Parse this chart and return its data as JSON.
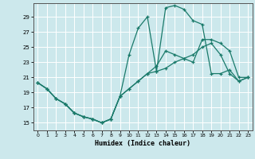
{
  "xlabel": "Humidex (Indice chaleur)",
  "xlim": [
    -0.5,
    23.5
  ],
  "ylim": [
    14.0,
    30.8
  ],
  "yticks": [
    15,
    17,
    19,
    21,
    23,
    25,
    27,
    29
  ],
  "xticks": [
    0,
    1,
    2,
    3,
    4,
    5,
    6,
    7,
    8,
    9,
    10,
    11,
    12,
    13,
    14,
    15,
    16,
    17,
    18,
    19,
    20,
    21,
    22,
    23
  ],
  "bg_color": "#cce8ec",
  "grid_color": "#ffffff",
  "line_color": "#1a7a6a",
  "line1_x": [
    0,
    1,
    2,
    3,
    4,
    5,
    6,
    7,
    8,
    9,
    10,
    11,
    12,
    13,
    14,
    15,
    16,
    17,
    18,
    19,
    20,
    21,
    22,
    23
  ],
  "line1_y": [
    20.3,
    19.5,
    18.2,
    17.5,
    16.3,
    15.8,
    15.5,
    15.0,
    15.5,
    18.5,
    19.5,
    20.5,
    21.5,
    21.8,
    22.2,
    23.0,
    23.5,
    24.0,
    25.0,
    25.5,
    24.0,
    21.5,
    20.5,
    21.0
  ],
  "line2_x": [
    0,
    1,
    2,
    3,
    4,
    5,
    6,
    7,
    8,
    9,
    10,
    11,
    12,
    13,
    14,
    15,
    16,
    17,
    18,
    19,
    20,
    21,
    22,
    23
  ],
  "line2_y": [
    20.3,
    19.5,
    18.2,
    17.5,
    16.3,
    15.8,
    15.5,
    15.0,
    15.5,
    18.5,
    24.0,
    27.5,
    29.0,
    21.8,
    30.2,
    30.5,
    30.0,
    28.5,
    28.0,
    21.5,
    21.5,
    22.0,
    20.5,
    21.0
  ],
  "line3_x": [
    0,
    1,
    2,
    3,
    4,
    5,
    6,
    7,
    8,
    9,
    10,
    11,
    12,
    13,
    14,
    15,
    16,
    17,
    18,
    19,
    20,
    21,
    22,
    23
  ],
  "line3_y": [
    20.3,
    19.5,
    18.2,
    17.5,
    16.3,
    15.8,
    15.5,
    15.0,
    15.5,
    18.5,
    19.5,
    20.5,
    21.5,
    22.5,
    24.5,
    24.0,
    23.5,
    23.0,
    26.0,
    26.0,
    25.5,
    24.5,
    21.0,
    21.0
  ]
}
